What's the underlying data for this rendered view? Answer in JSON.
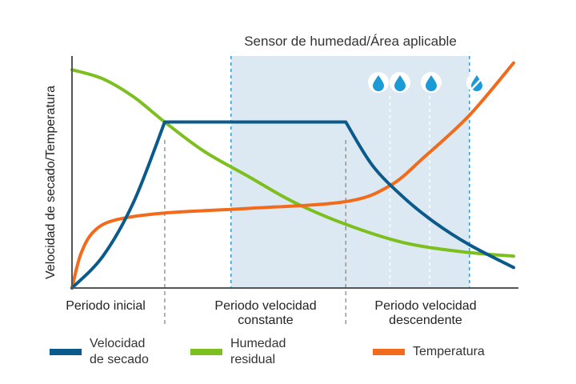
{
  "region_label": "Sensor de humedad/Área aplicable",
  "ylabel": "Velocidad de secado/Temperatura",
  "phases": [
    {
      "line1": "Periodo inicial",
      "line2": ""
    },
    {
      "line1": "Periodo velocidad",
      "line2": "constante"
    },
    {
      "line1": "Periodo velocidad",
      "line2": "descendente"
    }
  ],
  "legend": [
    {
      "line1": "Velocidad",
      "line2": "de secado",
      "color": "#0b5a8c"
    },
    {
      "line1": "Humedad",
      "line2": "residual",
      "color": "#7cbf1e"
    },
    {
      "line1": "Temperatura",
      "line2": "",
      "color": "#f26b1d"
    }
  ],
  "icons": [
    "water-drop-icon",
    "water-drop-icon",
    "water-drop-icon",
    "water-drop-slashed-icon"
  ],
  "colors": {
    "region_fill": "#dde9f2",
    "axis": "#555555",
    "divider": "#888888",
    "region_edge": "#2a9fd6"
  },
  "chart_data": {
    "type": "line",
    "xlim": [
      0,
      100
    ],
    "ylim": [
      0,
      100
    ],
    "phase_boundaries": [
      21,
      62
    ],
    "sensor_region": [
      36,
      90
    ],
    "drop_markers": [
      72,
      81
    ],
    "series": [
      {
        "name": "Velocidad de secado",
        "color": "#0b5a8c",
        "x": [
          0,
          7,
          14,
          21,
          62,
          68,
          75,
          82,
          90,
          100
        ],
        "y": [
          0,
          14,
          38,
          73,
          73,
          54,
          40,
          29,
          19,
          9
        ]
      },
      {
        "name": "Humedad residual",
        "color": "#7cbf1e",
        "x": [
          0,
          7,
          14,
          21,
          30,
          40,
          50,
          62,
          75,
          88,
          100
        ],
        "y": [
          96,
          92,
          84,
          73,
          60,
          49,
          38,
          28,
          20,
          16,
          14
        ]
      },
      {
        "name": "Temperatura",
        "color": "#f26b1d",
        "x": [
          0,
          2,
          5,
          10,
          21,
          40,
          62,
          72,
          80,
          90,
          100
        ],
        "y": [
          0,
          15,
          25,
          30,
          33,
          35,
          38,
          45,
          58,
          76,
          99
        ]
      }
    ]
  }
}
